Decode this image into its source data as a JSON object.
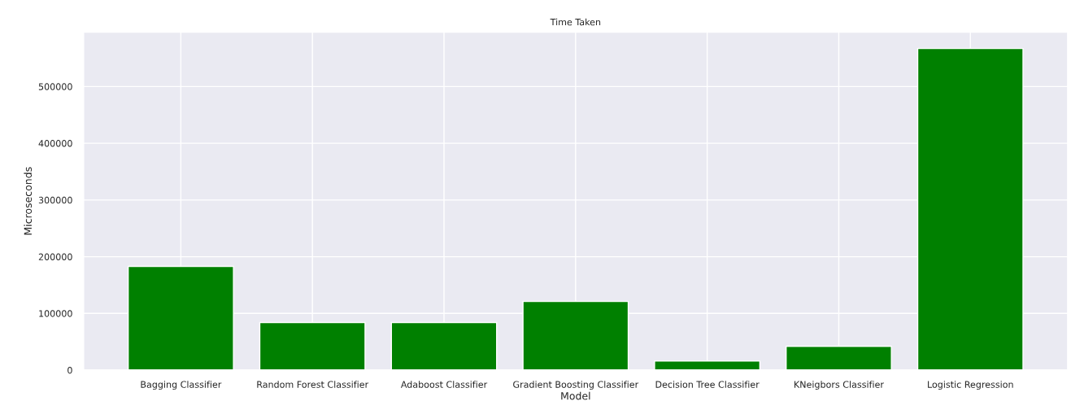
{
  "chart_data": {
    "type": "bar",
    "title": "Time Taken",
    "xlabel": "Model",
    "ylabel": "Microseconds",
    "categories": [
      "Bagging Classifier",
      "Random Forest Classifier",
      "Adaboost Classifier",
      "Gradient Boosting Classifier",
      "Decision Tree Classifier",
      "KNeigbors Classifier",
      "Logistic Regression"
    ],
    "values": [
      183000,
      84000,
      84000,
      121000,
      16000,
      42000,
      567000
    ],
    "color": "#008000",
    "ylim": [
      0,
      596000
    ],
    "yticks": [
      0,
      100000,
      200000,
      300000,
      400000,
      500000
    ],
    "grid": true
  }
}
